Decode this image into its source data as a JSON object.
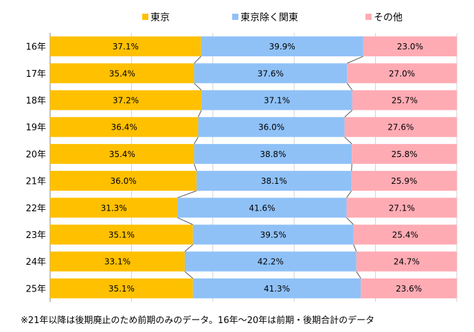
{
  "chart_data": {
    "type": "bar",
    "orientation": "horizontal",
    "stacked": "percent",
    "categories": [
      "16年",
      "17年",
      "18年",
      "19年",
      "20年",
      "21年",
      "22年",
      "23年",
      "24年",
      "25年"
    ],
    "series": [
      {
        "name": "東京",
        "color": "#FFC000",
        "values": [
          37.1,
          35.4,
          37.2,
          36.4,
          35.4,
          36.0,
          31.3,
          35.1,
          33.1,
          35.1
        ],
        "labels": [
          "37.1%",
          "35.4%",
          "37.2%",
          "36.4%",
          "35.4%",
          "36.0%",
          "31.3%",
          "35.1%",
          "33.1%",
          "35.1%"
        ]
      },
      {
        "name": "東京除く関東",
        "color": "#8FC1F7",
        "values": [
          39.9,
          37.6,
          37.1,
          36.0,
          38.8,
          38.1,
          41.6,
          39.5,
          42.2,
          41.3
        ],
        "labels": [
          "39.9%",
          "37.6%",
          "37.1%",
          "36.0%",
          "38.8%",
          "38.1%",
          "41.6%",
          "39.5%",
          "42.2%",
          "41.3%"
        ]
      },
      {
        "name": "その他",
        "color": "#FFABB4",
        "values": [
          23.0,
          27.0,
          25.7,
          27.6,
          25.8,
          25.9,
          27.1,
          25.4,
          24.7,
          23.6
        ],
        "labels": [
          "23.0%",
          "27.0%",
          "25.7%",
          "27.6%",
          "25.8%",
          "25.9%",
          "27.1%",
          "25.4%",
          "24.7%",
          "23.6%"
        ]
      }
    ],
    "xlim": [
      0,
      100
    ],
    "legend": "top",
    "series_lines": true,
    "grid": true,
    "footnote": "※21年以降は後期廃止のため前期のみのデータ。16年～20年は前期・後期合計のデータ"
  }
}
